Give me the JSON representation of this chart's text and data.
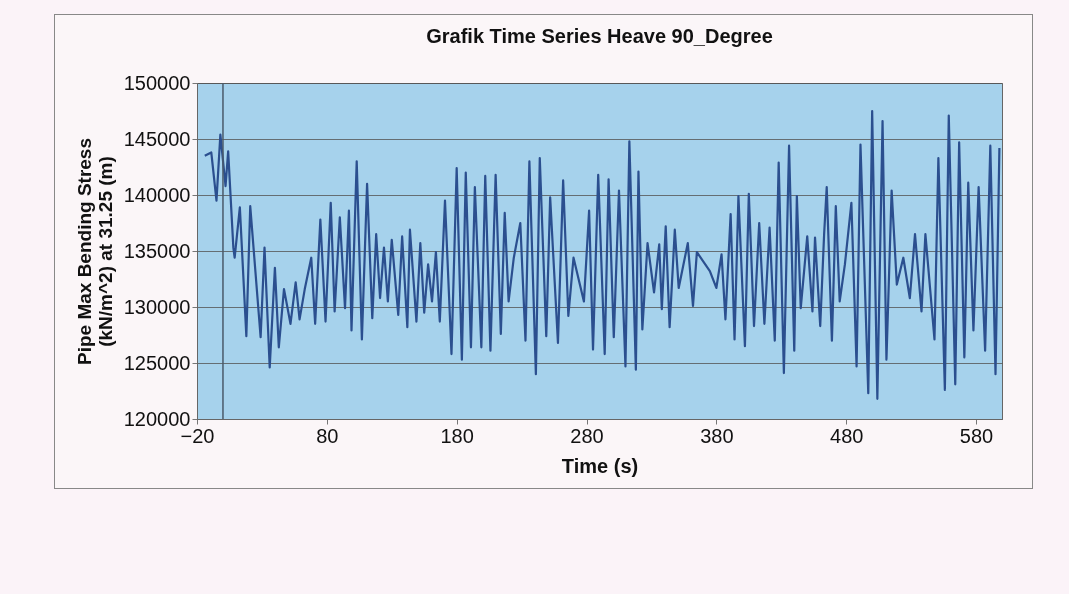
{
  "chart_data": {
    "type": "line",
    "title": "Grafik Time Series Heave 90_Degree",
    "xlabel": "Time (s)",
    "ylabel": "Pipe Max Bending Stress\n(kN/m^2) at 31.25 (m)",
    "x": [
      -14,
      -9,
      -5,
      -2,
      2,
      4,
      8,
      9,
      13,
      18,
      21,
      29,
      32,
      36,
      40,
      43,
      47,
      52,
      56,
      59,
      63,
      68,
      71,
      75,
      79,
      83,
      86,
      90,
      94,
      97,
      99,
      103,
      107,
      111,
      115,
      118,
      121,
      124,
      127,
      130,
      135,
      138,
      142,
      144,
      149,
      152,
      155,
      158,
      161,
      164,
      167,
      171,
      176,
      180,
      184,
      187,
      191,
      194,
      199,
      202,
      206,
      210,
      214,
      217,
      220,
      224,
      229,
      233,
      236,
      241,
      244,
      249,
      252,
      258,
      262,
      266,
      270,
      278,
      282,
      285,
      289,
      294,
      297,
      301,
      305,
      310,
      313,
      318,
      320,
      323,
      327,
      332,
      336,
      338,
      341,
      344,
      348,
      351,
      358,
      362,
      365,
      375,
      380,
      384,
      387,
      391,
      394,
      397,
      402,
      405,
      409,
      413,
      417,
      421,
      425,
      428,
      432,
      436,
      440,
      442,
      445,
      450,
      454,
      456,
      460,
      463,
      465,
      469,
      472,
      475,
      479,
      484,
      488,
      491,
      497,
      500,
      504,
      508,
      511,
      515,
      519,
      524,
      529,
      533,
      538,
      541,
      548,
      551,
      556,
      559,
      564,
      567,
      571,
      574,
      578,
      582,
      587,
      591,
      595,
      598
    ],
    "series": [
      {
        "color": "#2b4f8f",
        "values": [
          143500,
          143800,
          139500,
          145400,
          140800,
          143900,
          135300,
          134400,
          138900,
          127400,
          139000,
          127300,
          135300,
          124600,
          133500,
          126400,
          131600,
          128500,
          132200,
          128900,
          131600,
          134400,
          128500,
          137800,
          128700,
          139300,
          129600,
          138000,
          129900,
          138600,
          127900,
          143000,
          127100,
          141000,
          129000,
          136500,
          130800,
          135300,
          130500,
          136000,
          129300,
          136300,
          128200,
          136900,
          128700,
          135700,
          129500,
          133800,
          130500,
          134900,
          128700,
          139500,
          125800,
          142400,
          125300,
          142000,
          126400,
          140700,
          126400,
          141700,
          126100,
          141800,
          127600,
          138400,
          130500,
          134400,
          137500,
          127000,
          143000,
          124000,
          143300,
          127400,
          139800,
          126800,
          141300,
          129200,
          134400,
          130500,
          138600,
          126200,
          141800,
          125800,
          141400,
          127300,
          140400,
          124700,
          144800,
          124400,
          142100,
          128000,
          135700,
          131300,
          135600,
          129800,
          137200,
          128200,
          136900,
          131700,
          135700,
          130100,
          134900,
          133200,
          131700,
          134700,
          128900,
          138300,
          127100,
          139900,
          126500,
          140100,
          128300,
          137500,
          128500,
          137100,
          127000,
          142900,
          124100,
          144400,
          126100,
          139900,
          129900,
          136300,
          129600,
          136200,
          128300,
          136500,
          140700,
          127000,
          139000,
          130500,
          133800,
          139300,
          124700,
          144500,
          122300,
          147500,
          121800,
          146600,
          125300,
          140400,
          132000,
          134400,
          130800,
          136500,
          129600,
          136500,
          127100,
          143300,
          122600,
          147100,
          123100,
          144700,
          125500,
          141100,
          127900,
          140700,
          126100,
          144400,
          124000,
          144200
        ]
      }
    ],
    "xlim": [
      -20,
      600
    ],
    "xticks": [
      -20,
      80,
      180,
      280,
      380,
      480,
      580
    ],
    "ylim": [
      120000,
      150000
    ],
    "yticks": [
      120000,
      125000,
      130000,
      135000,
      140000,
      145000,
      150000
    ],
    "grid": "y",
    "marker": "none",
    "line_style": "solid",
    "ref_lines": [
      {
        "axis": "x",
        "value": 0,
        "color": "#4a5a6a"
      }
    ]
  }
}
